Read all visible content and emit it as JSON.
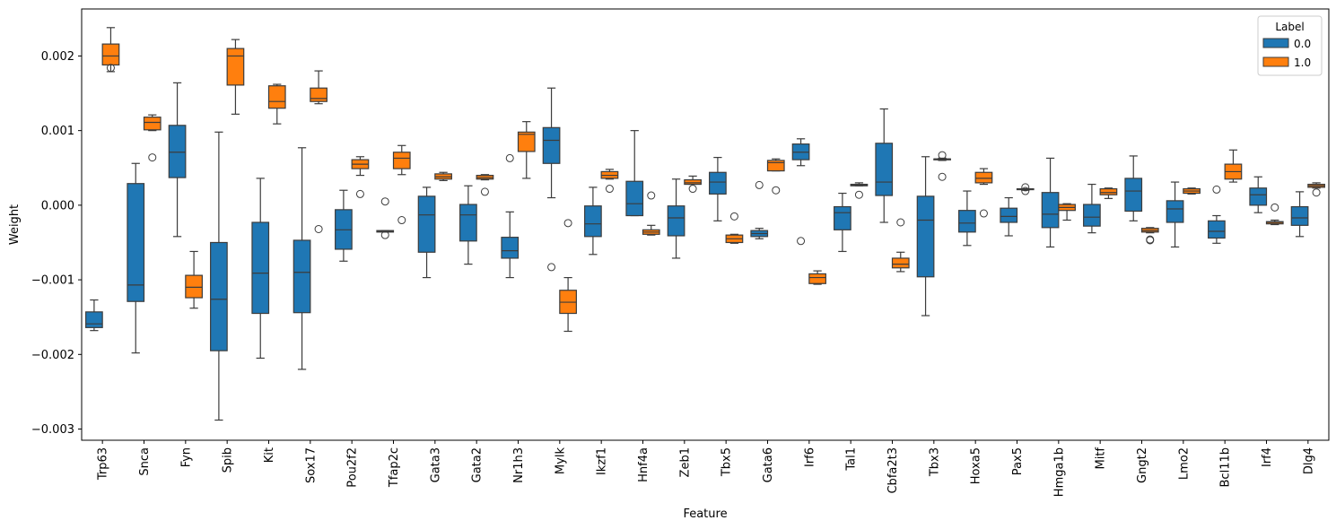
{
  "chart_data": {
    "type": "box",
    "title": "",
    "xlabel": "Feature",
    "ylabel": "Weight",
    "ylim": [
      -0.00315,
      0.00263
    ],
    "yticks": [
      -0.003,
      -0.002,
      -0.001,
      0.0,
      0.001,
      0.002
    ],
    "ytick_labels": [
      "−0.003",
      "−0.002",
      "−0.001",
      "0.000",
      "0.001",
      "0.002"
    ],
    "grid": false,
    "legend": {
      "title": "Label",
      "position": "top-right"
    },
    "categories": [
      "Trp63",
      "Snca",
      "Fyn",
      "Spib",
      "Kit",
      "Sox17",
      "Pou2f2",
      "Tfap2c",
      "Gata3",
      "Gata2",
      "Nr1h3",
      "Mylk",
      "Ikzf1",
      "Hnf4a",
      "Zeb1",
      "Tbx5",
      "Gata6",
      "Irf6",
      "Tal1",
      "Cbfa2t3",
      "Tbx3",
      "Hoxa5",
      "Pax5",
      "Hmga1b",
      "Mitf",
      "Gngt2",
      "Lmo2",
      "Bcl11b",
      "Irf4",
      "Dlg4"
    ],
    "series": [
      {
        "name": "0.0",
        "color": "#1f77b4",
        "boxes": [
          {
            "whislo": -0.00168,
            "q1": -0.00164,
            "med": -0.00159,
            "q3": -0.00143,
            "whishi": -0.00127,
            "fliers": []
          },
          {
            "whislo": -0.00198,
            "q1": -0.00129,
            "med": -0.00107,
            "q3": 0.00029,
            "whishi": 0.00056,
            "fliers": []
          },
          {
            "whislo": -0.00042,
            "q1": 0.00037,
            "med": 0.00071,
            "q3": 0.00107,
            "whishi": 0.00164,
            "fliers": []
          },
          {
            "whislo": -0.00288,
            "q1": -0.00195,
            "med": -0.00126,
            "q3": -0.0005,
            "whishi": 0.00098,
            "fliers": []
          },
          {
            "whislo": -0.00205,
            "q1": -0.00145,
            "med": -0.00091,
            "q3": -0.00023,
            "whishi": 0.00036,
            "fliers": []
          },
          {
            "whislo": -0.0022,
            "q1": -0.00144,
            "med": -0.0009,
            "q3": -0.00047,
            "whishi": 0.00077,
            "fliers": []
          },
          {
            "whislo": -0.00075,
            "q1": -0.00059,
            "med": -0.00033,
            "q3": -6e-05,
            "whishi": 0.0002,
            "fliers": []
          },
          {
            "whislo": -0.00036,
            "q1": -0.00036,
            "med": -0.00035,
            "q3": -0.00034,
            "whishi": -0.00034,
            "fliers": [
              5e-05,
              -0.0004
            ]
          },
          {
            "whislo": -0.00097,
            "q1": -0.00063,
            "med": -0.00013,
            "q3": 0.00012,
            "whishi": 0.00024,
            "fliers": []
          },
          {
            "whislo": -0.00079,
            "q1": -0.00048,
            "med": -0.00013,
            "q3": 1e-05,
            "whishi": 0.00026,
            "fliers": []
          },
          {
            "whislo": -0.00097,
            "q1": -0.00071,
            "med": -0.00061,
            "q3": -0.00043,
            "whishi": -9e-05,
            "fliers": [
              0.00063
            ]
          },
          {
            "whislo": 0.0001,
            "q1": 0.00056,
            "med": 0.00087,
            "q3": 0.00104,
            "whishi": 0.00157,
            "fliers": [
              -0.00083
            ]
          },
          {
            "whislo": -0.00066,
            "q1": -0.00042,
            "med": -0.00025,
            "q3": -1e-05,
            "whishi": 0.00024,
            "fliers": []
          },
          {
            "whislo": -0.00014,
            "q1": -0.00014,
            "med": 2e-05,
            "q3": 0.00032,
            "whishi": 0.001,
            "fliers": []
          },
          {
            "whislo": -0.00071,
            "q1": -0.00041,
            "med": -0.00017,
            "q3": -1e-05,
            "whishi": 0.00035,
            "fliers": []
          },
          {
            "whislo": -0.00021,
            "q1": 0.00015,
            "med": 0.00031,
            "q3": 0.00044,
            "whishi": 0.00064,
            "fliers": []
          },
          {
            "whislo": -0.00045,
            "q1": -0.00042,
            "med": -0.00038,
            "q3": -0.00034,
            "whishi": -0.00031,
            "fliers": [
              0.00027
            ]
          },
          {
            "whislo": 0.00053,
            "q1": 0.00061,
            "med": 0.00071,
            "q3": 0.00082,
            "whishi": 0.00089,
            "fliers": [
              -0.00048
            ]
          },
          {
            "whislo": -0.00062,
            "q1": -0.00033,
            "med": -0.0001,
            "q3": -2e-05,
            "whishi": 0.00016,
            "fliers": []
          },
          {
            "whislo": -0.00023,
            "q1": 0.00013,
            "med": 0.00031,
            "q3": 0.00083,
            "whishi": 0.00129,
            "fliers": []
          },
          {
            "whislo": -0.00148,
            "q1": -0.00096,
            "med": -0.0002,
            "q3": 0.00012,
            "whishi": 0.00065,
            "fliers": []
          },
          {
            "whislo": -0.00054,
            "q1": -0.00036,
            "med": -0.00024,
            "q3": -7e-05,
            "whishi": 0.00019,
            "fliers": []
          },
          {
            "whislo": -0.00041,
            "q1": -0.00023,
            "med": -0.00015,
            "q3": -4e-05,
            "whishi": 0.0001,
            "fliers": []
          },
          {
            "whislo": -0.00056,
            "q1": -0.0003,
            "med": -0.00012,
            "q3": 0.00017,
            "whishi": 0.00063,
            "fliers": []
          },
          {
            "whislo": -0.00037,
            "q1": -0.00028,
            "med": -0.00016,
            "q3": 1e-05,
            "whishi": 0.00028,
            "fliers": []
          },
          {
            "whislo": -0.00021,
            "q1": -8e-05,
            "med": 0.00019,
            "q3": 0.00036,
            "whishi": 0.00066,
            "fliers": []
          },
          {
            "whislo": -0.00056,
            "q1": -0.00023,
            "med": -5e-05,
            "q3": 6e-05,
            "whishi": 0.00031,
            "fliers": []
          },
          {
            "whislo": -0.00051,
            "q1": -0.00044,
            "med": -0.00035,
            "q3": -0.00021,
            "whishi": -0.00014,
            "fliers": [
              0.00021
            ]
          },
          {
            "whislo": -0.0001,
            "q1": 0.0,
            "med": 0.00014,
            "q3": 0.00023,
            "whishi": 0.00038,
            "fliers": []
          },
          {
            "whislo": -0.00042,
            "q1": -0.00027,
            "med": -0.00017,
            "q3": -2e-05,
            "whishi": 0.00018,
            "fliers": []
          }
        ]
      },
      {
        "name": "1.0",
        "color": "#ff7f0e",
        "boxes": [
          {
            "whislo": 0.00179,
            "q1": 0.00188,
            "med": 0.002,
            "q3": 0.00216,
            "whishi": 0.00238,
            "fliers": [
              0.00184
            ]
          },
          {
            "whislo": 0.001,
            "q1": 0.00101,
            "med": 0.00111,
            "q3": 0.00118,
            "whishi": 0.00121,
            "fliers": [
              0.00064
            ]
          },
          {
            "whislo": -0.00138,
            "q1": -0.00124,
            "med": -0.0011,
            "q3": -0.00094,
            "whishi": -0.00062,
            "fliers": []
          },
          {
            "whislo": 0.00122,
            "q1": 0.00161,
            "med": 0.002,
            "q3": 0.0021,
            "whishi": 0.00222,
            "fliers": []
          },
          {
            "whislo": 0.00109,
            "q1": 0.0013,
            "med": 0.00139,
            "q3": 0.0016,
            "whishi": 0.00162,
            "fliers": []
          },
          {
            "whislo": 0.00136,
            "q1": 0.00139,
            "med": 0.00143,
            "q3": 0.00157,
            "whishi": 0.0018,
            "fliers": [
              -0.00032
            ]
          },
          {
            "whislo": 0.0004,
            "q1": 0.00049,
            "med": 0.00055,
            "q3": 0.00061,
            "whishi": 0.00065,
            "fliers": [
              0.00015
            ]
          },
          {
            "whislo": 0.00041,
            "q1": 0.00049,
            "med": 0.00063,
            "q3": 0.00071,
            "whishi": 0.0008,
            "fliers": [
              -0.0002
            ]
          },
          {
            "whislo": 0.00033,
            "q1": 0.00035,
            "med": 0.00038,
            "q3": 0.00042,
            "whishi": 0.00044,
            "fliers": []
          },
          {
            "whislo": 0.00034,
            "q1": 0.00035,
            "med": 0.00037,
            "q3": 0.0004,
            "whishi": 0.00041,
            "fliers": [
              0.00018
            ]
          },
          {
            "whislo": 0.00036,
            "q1": 0.00072,
            "med": 0.00095,
            "q3": 0.00098,
            "whishi": 0.00112,
            "fliers": []
          },
          {
            "whislo": -0.00169,
            "q1": -0.00145,
            "med": -0.0013,
            "q3": -0.00114,
            "whishi": -0.00097,
            "fliers": [
              -0.00024
            ]
          },
          {
            "whislo": 0.00035,
            "q1": 0.00036,
            "med": 0.0004,
            "q3": 0.00045,
            "whishi": 0.00048,
            "fliers": [
              0.00022
            ]
          },
          {
            "whislo": -0.0004,
            "q1": -0.00039,
            "med": -0.00036,
            "q3": -0.00033,
            "whishi": -0.00027,
            "fliers": [
              0.00013
            ]
          },
          {
            "whislo": 0.00028,
            "q1": 0.00028,
            "med": 0.0003,
            "q3": 0.00034,
            "whishi": 0.00039,
            "fliers": [
              0.00022
            ]
          },
          {
            "whislo": -0.00051,
            "q1": -0.0005,
            "med": -0.00045,
            "q3": -0.0004,
            "whishi": -0.00039,
            "fliers": [
              -0.00015
            ]
          },
          {
            "whislo": 0.00046,
            "q1": 0.00046,
            "med": 0.00057,
            "q3": 0.0006,
            "whishi": 0.00062,
            "fliers": [
              0.0002
            ]
          },
          {
            "whislo": -0.00106,
            "q1": -0.00105,
            "med": -0.00097,
            "q3": -0.00092,
            "whishi": -0.00088,
            "fliers": []
          },
          {
            "whislo": 0.00026,
            "q1": 0.00026,
            "med": 0.00027,
            "q3": 0.00028,
            "whishi": 0.0003,
            "fliers": [
              0.00014
            ]
          },
          {
            "whislo": -0.00089,
            "q1": -0.00084,
            "med": -0.00079,
            "q3": -0.00071,
            "whishi": -0.00063,
            "fliers": [
              -0.00023
            ]
          },
          {
            "whislo": 0.0006,
            "q1": 0.00061,
            "med": 0.00062,
            "q3": 0.00062,
            "whishi": 0.00063,
            "fliers": [
              0.00067,
              0.00038
            ]
          },
          {
            "whislo": 0.00028,
            "q1": 0.0003,
            "med": 0.00036,
            "q3": 0.00044,
            "whishi": 0.00049,
            "fliers": [
              -0.00011
            ]
          },
          {
            "whislo": 0.0002,
            "q1": 0.00021,
            "med": 0.00022,
            "q3": 0.00022,
            "whishi": 0.00022,
            "fliers": [
              0.00024,
              0.00019
            ]
          },
          {
            "whislo": -0.0002,
            "q1": -7e-05,
            "med": -3e-05,
            "q3": 1e-05,
            "whishi": 2e-05,
            "fliers": []
          },
          {
            "whislo": 9e-05,
            "q1": 0.00014,
            "med": 0.00017,
            "q3": 0.00022,
            "whishi": 0.00023,
            "fliers": []
          },
          {
            "whislo": -0.00037,
            "q1": -0.00036,
            "med": -0.00034,
            "q3": -0.00031,
            "whishi": -0.0003,
            "fliers": [
              -0.00046,
              -0.00047
            ]
          },
          {
            "whislo": 0.00015,
            "q1": 0.00016,
            "med": 0.00019,
            "q3": 0.00022,
            "whishi": 0.00023,
            "fliers": []
          },
          {
            "whislo": 0.00031,
            "q1": 0.00035,
            "med": 0.00045,
            "q3": 0.00055,
            "whishi": 0.00074,
            "fliers": []
          },
          {
            "whislo": -0.00026,
            "q1": -0.00025,
            "med": -0.00023,
            "q3": -0.00022,
            "whishi": -0.0002,
            "fliers": [
              -3e-05
            ]
          },
          {
            "whislo": 0.00023,
            "q1": 0.00024,
            "med": 0.00026,
            "q3": 0.00028,
            "whishi": 0.0003,
            "fliers": [
              0.00017
            ]
          }
        ]
      }
    ]
  }
}
